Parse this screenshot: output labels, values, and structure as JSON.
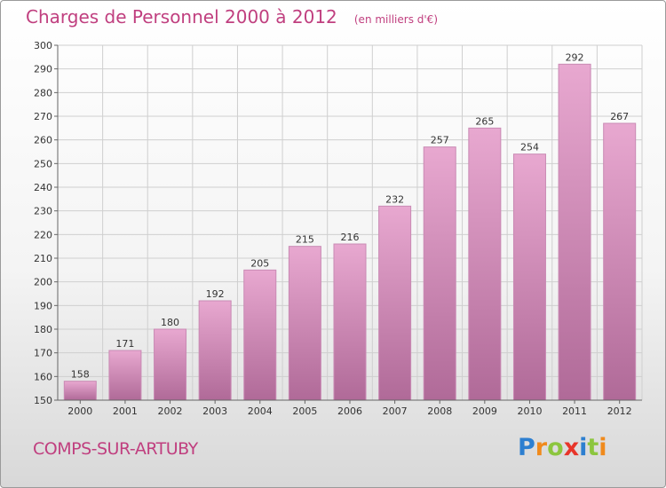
{
  "header": {
    "title": "Charges de Personnel 2000 à 2012",
    "subtitle": "(en milliers d'€)"
  },
  "footer": {
    "city": "COMPS-SUR-ARTUBY",
    "logo_letters": [
      "P",
      "r",
      "o",
      "x",
      "i",
      "t",
      "i"
    ],
    "logo_colors": [
      "#2d7fd0",
      "#f08a1c",
      "#8cc63f",
      "#e8352a",
      "#2d7fd0",
      "#8cc63f",
      "#f08a1c"
    ]
  },
  "colors": {
    "title": "#c03f7f",
    "bar_top": "#e8a8d0",
    "bar_bottom": "#b06a98",
    "grid": "#cfcfcf"
  },
  "chart_data": {
    "type": "bar",
    "title": "Charges de Personnel 2000 à 2012",
    "subtitle": "(en milliers d'€)",
    "categories": [
      "2000",
      "2001",
      "2002",
      "2003",
      "2004",
      "2005",
      "2006",
      "2007",
      "2008",
      "2009",
      "2010",
      "2011",
      "2012"
    ],
    "values": [
      158,
      171,
      180,
      192,
      205,
      215,
      216,
      232,
      257,
      265,
      254,
      292,
      267
    ],
    "ylim": [
      150,
      300
    ],
    "yticks": [
      150,
      160,
      170,
      180,
      190,
      200,
      210,
      220,
      230,
      240,
      250,
      260,
      270,
      280,
      290,
      300
    ],
    "grid": true,
    "xlabel": "",
    "ylabel": ""
  }
}
